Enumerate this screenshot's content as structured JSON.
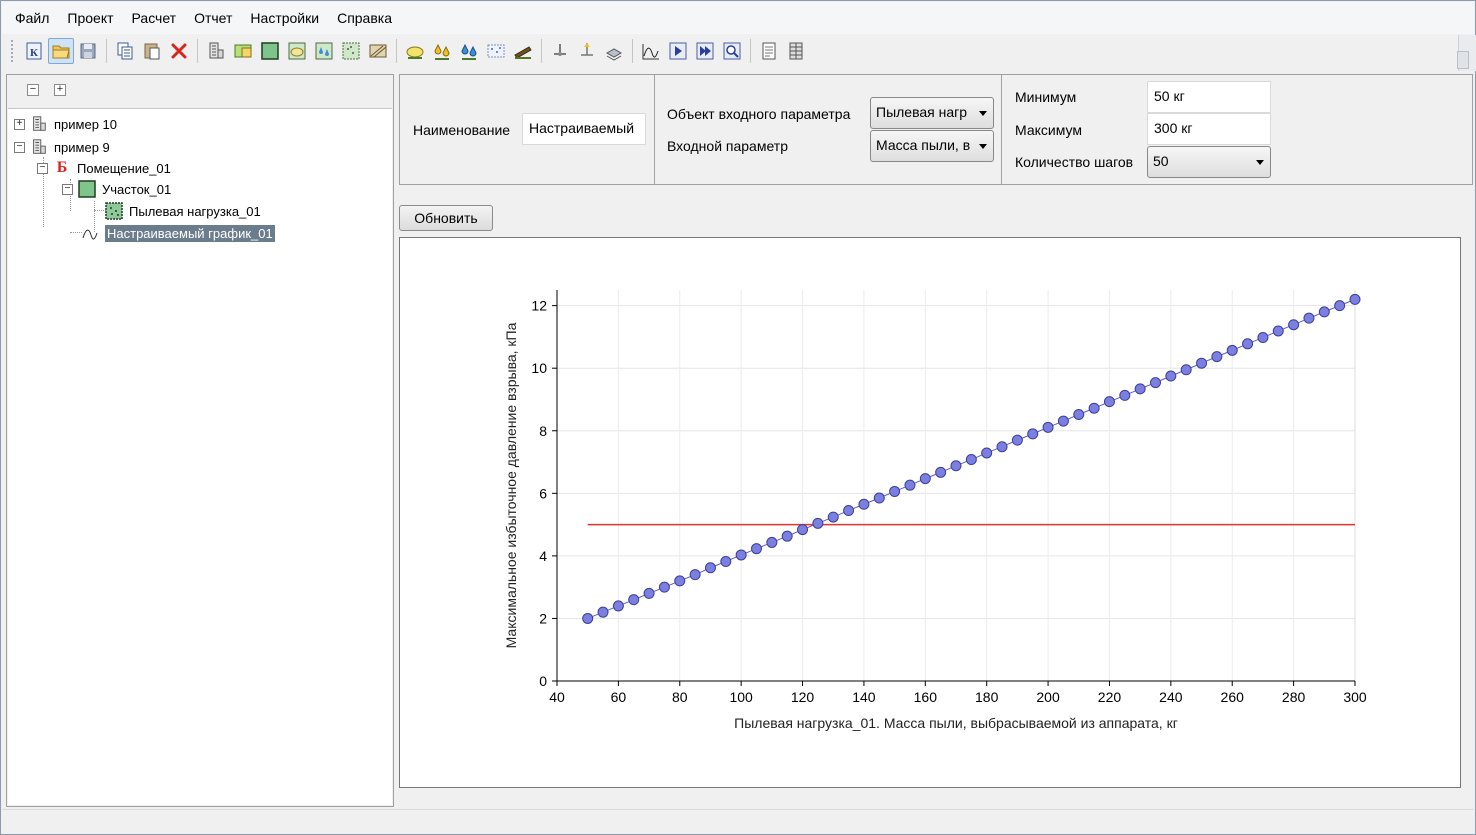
{
  "menu": [
    "Файл",
    "Проект",
    "Расчет",
    "Отчет",
    "Настройки",
    "Справка"
  ],
  "toolbar": {
    "groups": [
      [
        "project-icon",
        "open-folder-icon",
        "save-icon"
      ],
      [
        "copy-icon",
        "paste-icon",
        "delete-icon"
      ],
      [
        "building-icon",
        "room-icon",
        "zone-icon",
        "zone-cloud-icon",
        "zone-drops-icon",
        "zone-dust-icon",
        "zone-hatch-icon"
      ],
      [
        "cloud-icon",
        "drops-yellow-icon",
        "drops-blue-icon",
        "dust-icon",
        "pipe-icon"
      ],
      [
        "pump-icon",
        "source-icon",
        "layer-icon"
      ],
      [
        "graph-icon",
        "run-icon",
        "run-all-icon",
        "inspect-icon"
      ],
      [
        "report-icon",
        "table-icon"
      ]
    ]
  },
  "tree": {
    "collapse_all": "−",
    "expand_all": "+",
    "nodes": [
      {
        "label": "пример 10",
        "icon": "building-icon",
        "expander": "+"
      },
      {
        "label": "пример 9",
        "icon": "building-icon",
        "expander": "−"
      },
      {
        "label": "Помещение_01",
        "icon": "room-b-icon",
        "expander": "−",
        "icon_text": "Б"
      },
      {
        "label": "Участок_01",
        "icon": "zone-icon",
        "expander": "−"
      },
      {
        "label": "Пылевая нагрузка_01",
        "icon": "dust-load-icon"
      },
      {
        "label": "Настраиваемый график_01",
        "icon": "graph-icon",
        "selected": true
      }
    ]
  },
  "params": {
    "name_label": "Наименование",
    "name_value": "Настраиваемый",
    "object_label": "Объект входного параметра",
    "object_value": "Пылевая нагр",
    "input_label": "Входной параметр",
    "input_value": "Масса пыли, в",
    "min_label": "Минимум",
    "min_value": "50 кг",
    "max_label": "Максимум",
    "max_value": "300 кг",
    "steps_label": "Количество шагов",
    "steps_value": "50"
  },
  "refresh_label": "Обновить",
  "chart_data": {
    "type": "scatter",
    "xlabel": "Пылевая нагрузка_01. Масса пыли, выбрасываемой из аппарата, кг",
    "ylabel": "Максимальное избыточное давление взрыва, кПа",
    "xlim": [
      40,
      300
    ],
    "ylim": [
      0,
      12.5
    ],
    "xticks": [
      40,
      60,
      80,
      100,
      120,
      140,
      160,
      180,
      200,
      220,
      240,
      260,
      280,
      300
    ],
    "yticks": [
      0,
      2,
      4,
      6,
      8,
      10,
      12
    ],
    "grid": true,
    "series": [
      {
        "x_start": 50,
        "x_end": 300,
        "x_step": 5,
        "y": [
          2.0,
          2.2,
          2.4,
          2.6,
          2.8,
          3.0,
          3.2,
          3.4,
          3.62,
          3.82,
          4.03,
          4.23,
          4.43,
          4.63,
          4.84,
          5.04,
          5.24,
          5.45,
          5.65,
          5.85,
          6.06,
          6.26,
          6.47,
          6.67,
          6.88,
          7.08,
          7.29,
          7.49,
          7.7,
          7.9,
          8.11,
          8.31,
          8.52,
          8.72,
          8.93,
          9.13,
          9.34,
          9.54,
          9.75,
          9.95,
          10.16,
          10.37,
          10.57,
          10.78,
          10.98,
          11.19,
          11.39,
          11.6,
          11.8,
          12.0,
          12.2
        ],
        "color": "#7b7fe0"
      }
    ],
    "threshold": {
      "y": 5.0,
      "x_from": 50,
      "x_to": 300,
      "color": "#e8302f"
    }
  }
}
